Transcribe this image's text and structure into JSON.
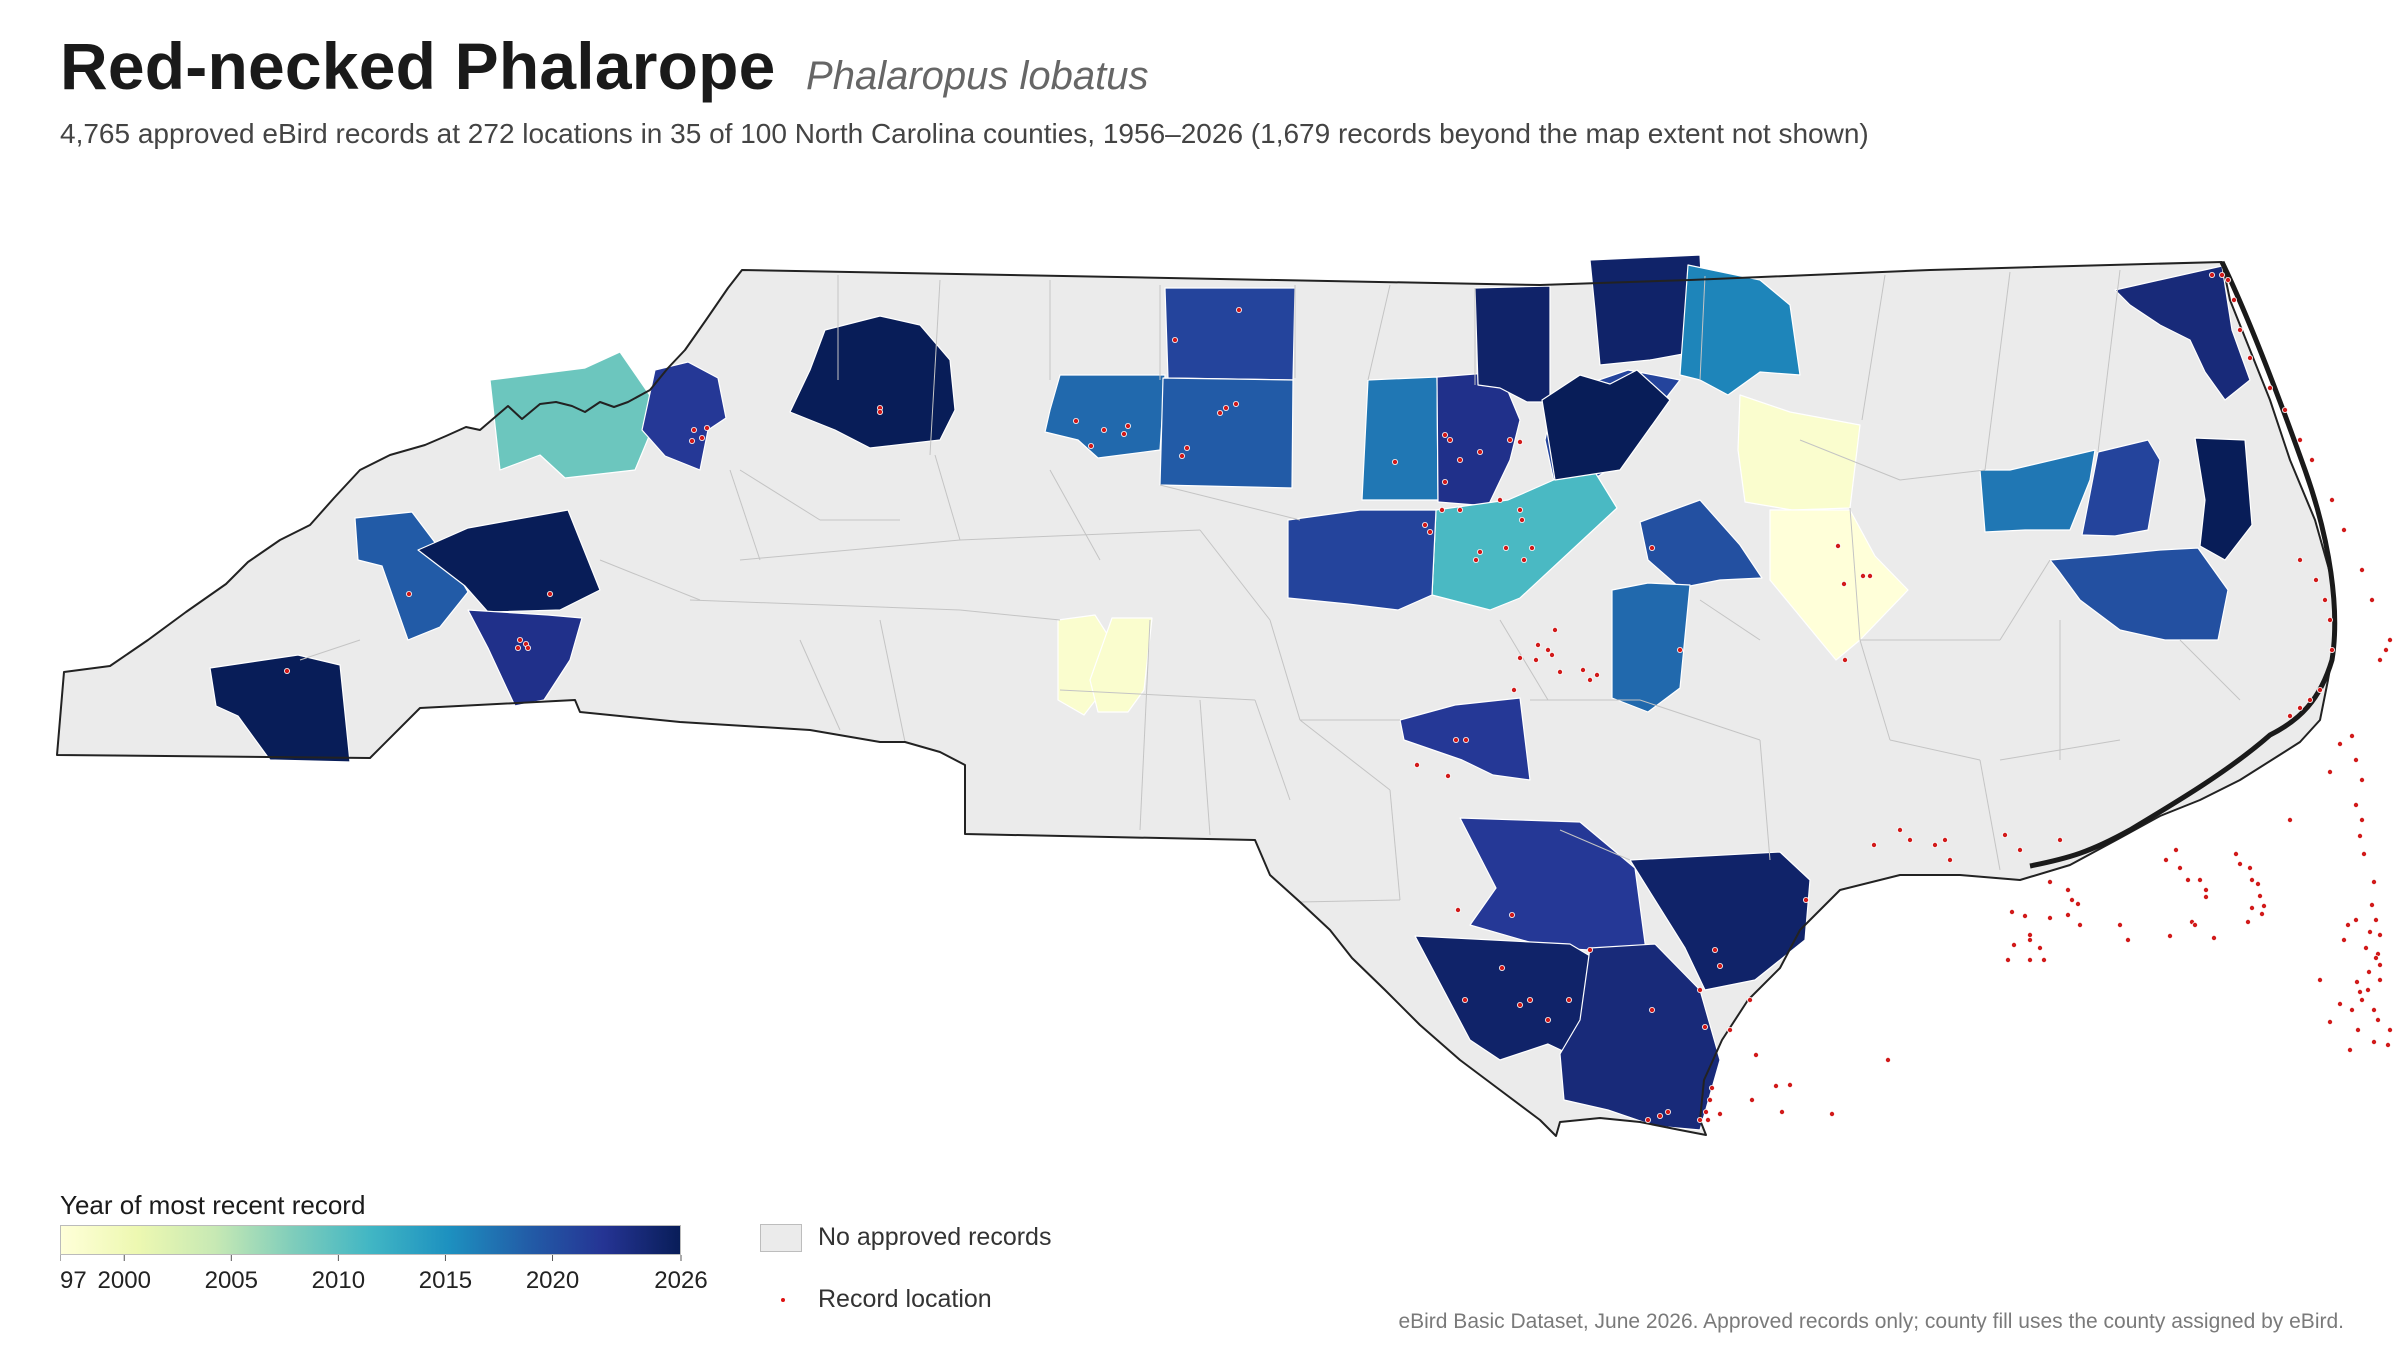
{
  "title": "Red-necked Phalarope",
  "scientific_name": "Phalaropus lobatus",
  "subtitle": "4,765 approved eBird records at 272 locations in 35 of 100 North Carolina counties, 1956–2026 (1,679 records beyond the map extent not shown)",
  "legend": {
    "title": "Year of most recent record",
    "ticks": [
      "1997",
      "2000",
      "2005",
      "2010",
      "2015",
      "2020",
      "2026"
    ],
    "tick_years": [
      1997,
      2000,
      2005,
      2010,
      2015,
      2020,
      2026
    ],
    "range": [
      1997,
      2026
    ],
    "colors": [
      "#ffffd9",
      "#edf8b1",
      "#c7e9b4",
      "#7fcdbb",
      "#41b6c4",
      "#1d91c0",
      "#225ea8",
      "#253494",
      "#081d58"
    ],
    "no_records_label": "No approved records",
    "no_records_color": "#ebebeb",
    "record_location_label": "Record location",
    "record_color": "#d11a1a"
  },
  "source_note": "eBird Basic Dataset, June 2026. Approved records only; county fill uses the county assigned by eBird.",
  "chart_data": {
    "type": "choropleth",
    "region": "North Carolina",
    "counties_total": 100,
    "counties_with_records": 35,
    "record_count": 4765,
    "location_count": 272,
    "years": [
      1956,
      2026
    ],
    "colored_counties_last_record_year": [
      2024,
      2025,
      2021,
      2009,
      2018,
      2026,
      2019,
      2022,
      2017,
      2023,
      2025,
      2021,
      2011,
      2021,
      2026,
      2020,
      2018,
      2016,
      1998,
      1997,
      1998,
      2017,
      2021,
      2026,
      2020,
      2026,
      2019,
      2026,
      2023,
      2022,
      2022,
      2025,
      2025,
      2024,
      1998
    ]
  }
}
